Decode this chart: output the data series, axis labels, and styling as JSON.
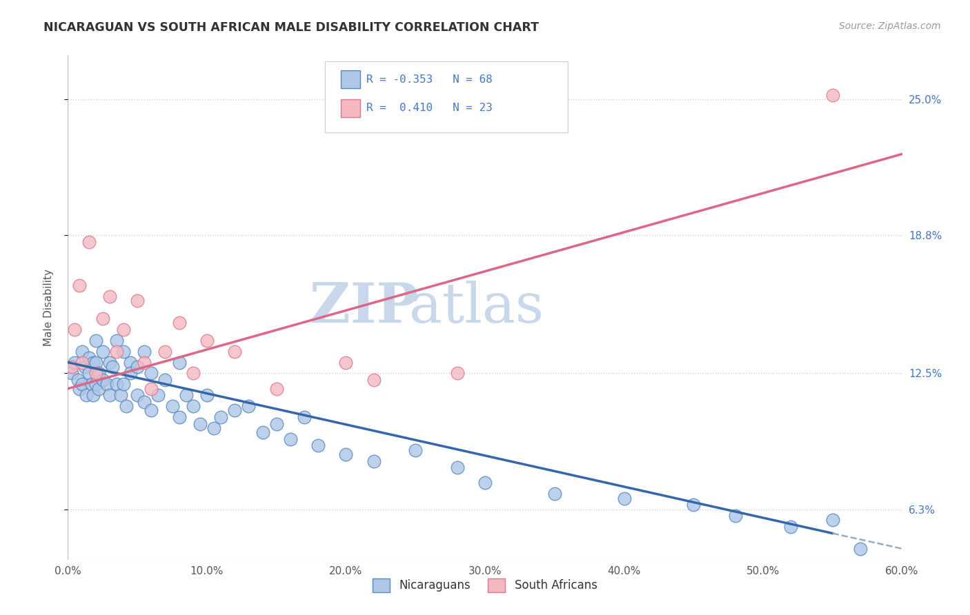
{
  "title": "NICARAGUAN VS SOUTH AFRICAN MALE DISABILITY CORRELATION CHART",
  "source": "Source: ZipAtlas.com",
  "ylabel": "Male Disability",
  "xlim": [
    0.0,
    60.0
  ],
  "ylim": [
    4.0,
    27.0
  ],
  "ytick_labels": [
    "6.3%",
    "12.5%",
    "18.8%",
    "25.0%"
  ],
  "ytick_values": [
    6.3,
    12.5,
    18.8,
    25.0
  ],
  "xtick_labels": [
    "0.0%",
    "10.0%",
    "20.0%",
    "30.0%",
    "40.0%",
    "50.0%",
    "60.0%"
  ],
  "xtick_values": [
    0,
    10,
    20,
    30,
    40,
    50,
    60
  ],
  "nicaraguan_color": "#aec6e8",
  "south_african_color": "#f4b8c1",
  "nicaraguan_edge": "#5588bb",
  "south_african_edge": "#dd7788",
  "trend_blue": "#3366aa",
  "trend_pink": "#dd6688",
  "trend_dashed_color": "#99aabb",
  "R_nicaraguan": -0.353,
  "N_nicaraguan": 68,
  "R_south_african": 0.41,
  "N_south_african": 23,
  "legend_label_nicaraguan": "Nicaraguans",
  "legend_label_south_african": "South Africans",
  "background_color": "#ffffff",
  "grid_color": "#cccccc",
  "watermark_zip": "ZIP",
  "watermark_atlas": "atlas",
  "nicaraguan_x": [
    0.3,
    0.5,
    0.7,
    0.8,
    1.0,
    1.0,
    1.2,
    1.3,
    1.5,
    1.5,
    1.7,
    1.8,
    1.8,
    2.0,
    2.0,
    2.0,
    2.2,
    2.2,
    2.5,
    2.5,
    2.8,
    3.0,
    3.0,
    3.2,
    3.5,
    3.5,
    3.8,
    4.0,
    4.0,
    4.2,
    4.5,
    4.5,
    5.0,
    5.0,
    5.5,
    5.5,
    6.0,
    6.0,
    6.5,
    7.0,
    7.5,
    8.0,
    8.0,
    8.5,
    9.0,
    9.5,
    10.0,
    10.5,
    11.0,
    12.0,
    13.0,
    14.0,
    15.0,
    16.0,
    17.0,
    18.0,
    20.0,
    22.0,
    25.0,
    28.0,
    30.0,
    35.0,
    40.0,
    45.0,
    48.0,
    52.0,
    55.0,
    57.0
  ],
  "nicaraguan_y": [
    12.5,
    13.0,
    12.2,
    11.8,
    13.5,
    12.0,
    12.8,
    11.5,
    13.2,
    12.5,
    12.0,
    13.0,
    11.5,
    14.0,
    13.0,
    12.0,
    12.5,
    11.8,
    13.5,
    12.2,
    12.0,
    13.0,
    11.5,
    12.8,
    14.0,
    12.0,
    11.5,
    13.5,
    12.0,
    11.0,
    13.0,
    12.5,
    12.8,
    11.5,
    13.5,
    11.2,
    12.5,
    10.8,
    11.5,
    12.2,
    11.0,
    13.0,
    10.5,
    11.5,
    11.0,
    10.2,
    11.5,
    10.0,
    10.5,
    10.8,
    11.0,
    9.8,
    10.2,
    9.5,
    10.5,
    9.2,
    8.8,
    8.5,
    9.0,
    8.2,
    7.5,
    7.0,
    6.8,
    6.5,
    6.0,
    5.5,
    5.8,
    4.5
  ],
  "south_african_x": [
    0.3,
    0.5,
    0.8,
    1.0,
    1.5,
    2.0,
    2.5,
    3.0,
    3.5,
    4.0,
    5.0,
    5.5,
    6.0,
    7.0,
    8.0,
    9.0,
    10.0,
    12.0,
    15.0,
    20.0,
    22.0,
    28.0,
    55.0
  ],
  "south_african_y": [
    12.8,
    14.5,
    16.5,
    13.0,
    18.5,
    12.5,
    15.0,
    16.0,
    13.5,
    14.5,
    15.8,
    13.0,
    11.8,
    13.5,
    14.8,
    12.5,
    14.0,
    13.5,
    11.8,
    13.0,
    12.2,
    12.5,
    25.2
  ],
  "nic_trend_x0": 0,
  "nic_trend_y0": 13.0,
  "nic_trend_x1": 55,
  "nic_trend_y1": 5.2,
  "nic_dash_x0": 55,
  "nic_dash_y0": 5.2,
  "nic_dash_x1": 60,
  "nic_dash_y1": 4.5,
  "saf_trend_x0": 0,
  "saf_trend_y0": 11.8,
  "saf_trend_x1": 60,
  "saf_trend_y1": 22.5
}
